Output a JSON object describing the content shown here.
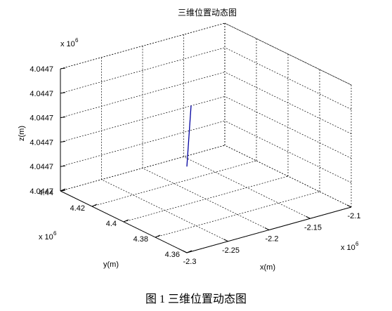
{
  "chart_data": {
    "type": "line",
    "title": "三维位置动态图",
    "xlabel": "x(m)",
    "ylabel": "y(m)",
    "zlabel": "z(m)",
    "x_multiplier": "x 10",
    "x_multiplier_exp": "6",
    "y_multiplier": "x 10",
    "y_multiplier_exp": "6",
    "z_multiplier": "x 10",
    "z_multiplier_exp": "6",
    "x_ticks": [
      "-2.3",
      "-2.25",
      "-2.2",
      "-2.15",
      "-2.1"
    ],
    "y_ticks": [
      "4.36",
      "4.38",
      "4.4",
      "4.42",
      "4.44"
    ],
    "z_ticks": [
      "4.0447",
      "4.0447",
      "4.0447",
      "4.0447",
      "4.0447",
      "4.0447"
    ],
    "xlim": [
      -2.3,
      -2.1
    ],
    "ylim": [
      4.36,
      4.44
    ],
    "zlim": [
      0,
      5
    ],
    "grid": true,
    "series": [
      {
        "color": "#0000a0",
        "x": [
          -2.2,
          -2.2
        ],
        "y": [
          4.412,
          4.412
        ],
        "z": [
          0.95,
          3.45
        ]
      }
    ]
  },
  "caption": "图 1  三维位置动态图"
}
